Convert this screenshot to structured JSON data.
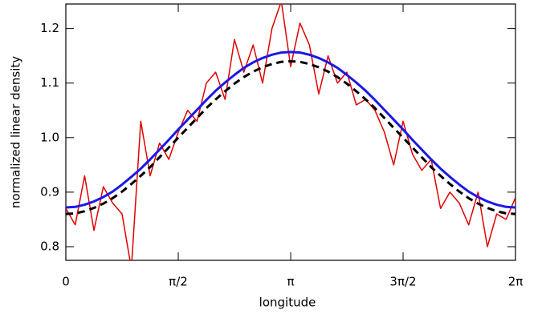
{
  "chart_data": {
    "type": "line",
    "xlabel": "longitude",
    "ylabel": "normalized linear density",
    "x": [
      0,
      0.131,
      0.262,
      0.393,
      0.524,
      0.654,
      0.785,
      0.916,
      1.047,
      1.178,
      1.309,
      1.44,
      1.571,
      1.702,
      1.833,
      1.963,
      2.094,
      2.225,
      2.356,
      2.487,
      2.618,
      2.749,
      2.88,
      3.011,
      3.142,
      3.272,
      3.403,
      3.534,
      3.665,
      3.796,
      3.927,
      4.058,
      4.189,
      4.32,
      4.451,
      4.581,
      4.712,
      4.843,
      4.974,
      5.105,
      5.236,
      5.367,
      5.498,
      5.629,
      5.76,
      5.89,
      6.021,
      6.152,
      6.283
    ],
    "series": [
      {
        "color": "#e00000",
        "width": 1.5,
        "dash": false,
        "values": [
          0.87,
          0.84,
          0.93,
          0.83,
          0.91,
          0.88,
          0.86,
          0.76,
          1.03,
          0.93,
          0.99,
          0.96,
          1.01,
          1.05,
          1.03,
          1.1,
          1.12,
          1.07,
          1.18,
          1.12,
          1.17,
          1.1,
          1.2,
          1.25,
          1.13,
          1.21,
          1.17,
          1.08,
          1.15,
          1.1,
          1.12,
          1.06,
          1.07,
          1.05,
          1.01,
          0.95,
          1.03,
          0.97,
          0.94,
          0.96,
          0.87,
          0.9,
          0.88,
          0.84,
          0.9,
          0.8,
          0.86,
          0.85,
          0.89
        ]
      },
      {
        "color": "#000000",
        "width": 3,
        "dash": true,
        "values": [
          0.86,
          0.861,
          0.865,
          0.871,
          0.879,
          0.889,
          0.901,
          0.915,
          0.93,
          0.946,
          0.964,
          0.982,
          1.0,
          1.018,
          1.036,
          1.054,
          1.07,
          1.085,
          1.099,
          1.111,
          1.121,
          1.129,
          1.135,
          1.139,
          1.14,
          1.139,
          1.135,
          1.129,
          1.121,
          1.111,
          1.099,
          1.085,
          1.07,
          1.054,
          1.036,
          1.018,
          1.0,
          0.982,
          0.964,
          0.946,
          0.93,
          0.915,
          0.901,
          0.889,
          0.879,
          0.871,
          0.865,
          0.861,
          0.86
        ]
      },
      {
        "color": "#1a1ae6",
        "width": 3,
        "dash": false,
        "values": [
          0.872,
          0.873,
          0.877,
          0.883,
          0.891,
          0.901,
          0.914,
          0.928,
          0.943,
          0.96,
          0.978,
          0.996,
          1.015,
          1.033,
          1.051,
          1.069,
          1.086,
          1.101,
          1.115,
          1.128,
          1.138,
          1.146,
          1.152,
          1.156,
          1.157,
          1.156,
          1.152,
          1.146,
          1.138,
          1.128,
          1.115,
          1.101,
          1.086,
          1.069,
          1.051,
          1.033,
          1.015,
          0.996,
          0.978,
          0.96,
          0.943,
          0.928,
          0.914,
          0.901,
          0.891,
          0.883,
          0.877,
          0.873,
          0.872
        ]
      }
    ],
    "xlim": [
      0,
      6.2832
    ],
    "ylim": [
      0.775,
      1.245
    ],
    "xticks": [
      0,
      {
        "value": 1.5708,
        "label": "π/2"
      },
      {
        "value": 3.1416,
        "label": "π"
      },
      {
        "value": 4.7124,
        "label": "3π/2"
      },
      {
        "value": 6.2832,
        "label": "2π"
      }
    ],
    "yticks": [
      0.8,
      0.9,
      {
        "value": 1.0,
        "label": "1.0"
      },
      1.1,
      1.2
    ]
  }
}
